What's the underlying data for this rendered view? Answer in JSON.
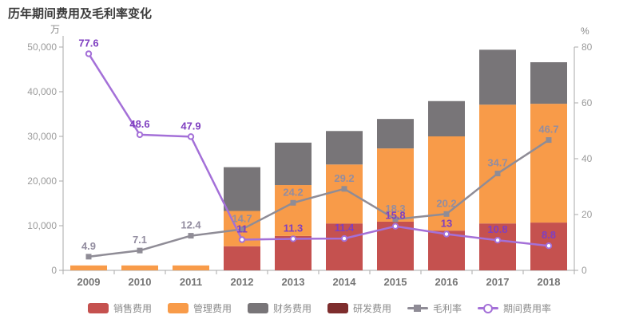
{
  "title": "历年期间费用及毛利率变化",
  "legend": [
    {
      "key": "sales-expense",
      "label": "销售费用",
      "type": "bar",
      "color": "#c5514f"
    },
    {
      "key": "admin-expense",
      "label": "管理费用",
      "type": "bar",
      "color": "#f89b49"
    },
    {
      "key": "finance-expense",
      "label": "财务费用",
      "type": "bar",
      "color": "#787578"
    },
    {
      "key": "rd-expense",
      "label": "研发费用",
      "type": "bar",
      "color": "#7e2d2d"
    },
    {
      "key": "gross-margin",
      "label": "毛利率",
      "type": "line-square",
      "color": "#8f8c96"
    },
    {
      "key": "period-expense-ratio",
      "label": "期间费用率",
      "type": "line-circle",
      "color": "#a470d8"
    }
  ],
  "chart_data": {
    "type": "bar+line",
    "categories": [
      "2009",
      "2010",
      "2011",
      "2012",
      "2013",
      "2014",
      "2015",
      "2016",
      "2017",
      "2018"
    ],
    "left_axis": {
      "unit": "万",
      "min": 0,
      "max": 50000,
      "ticks": [
        "0",
        "10,000",
        "20,000",
        "30,000",
        "40,000",
        "50,000"
      ]
    },
    "right_axis": {
      "unit": "%",
      "min": 0,
      "max": 80,
      "ticks": [
        "0",
        "20",
        "40",
        "60",
        "80"
      ]
    },
    "bar_series": [
      {
        "name": "销售费用",
        "key": "sales-expense",
        "color": "#c5514f",
        "values": [
          0,
          0,
          0,
          5400,
          7700,
          10500,
          10900,
          8900,
          10500,
          10700
        ]
      },
      {
        "name": "管理费用",
        "key": "admin-expense",
        "color": "#f89b49",
        "values": [
          1100,
          1100,
          1100,
          7900,
          11400,
          13200,
          16400,
          21100,
          26600,
          26600
        ]
      },
      {
        "name": "财务费用",
        "key": "finance-expense",
        "color": "#787578",
        "values": [
          0,
          0,
          0,
          9800,
          9500,
          7500,
          6600,
          7900,
          12300,
          9300
        ]
      },
      {
        "name": "研发费用",
        "key": "rd-expense",
        "color": "#7e2d2d",
        "values": [
          0,
          0,
          0,
          0,
          0,
          0,
          0,
          0,
          0,
          0
        ]
      }
    ],
    "line_series": [
      {
        "name": "毛利率",
        "key": "gross-margin",
        "axis": "right",
        "marker": "square",
        "color": "#8f8c96",
        "label_color": "#938da0",
        "values": [
          4.9,
          7.1,
          12.4,
          14.7,
          24.2,
          29.2,
          18.3,
          20.2,
          34.7,
          46.7
        ],
        "labels": [
          "4.9",
          "7.1",
          "12.4",
          "14.7",
          "24.2",
          "29.2",
          "18.3",
          "20.2",
          "34.7",
          "46.7"
        ]
      },
      {
        "name": "期间费用率",
        "key": "period-expense-ratio",
        "axis": "right",
        "marker": "circle",
        "color": "#a470d8",
        "label_color": "#7f3fc0",
        "values": [
          77.6,
          48.6,
          47.9,
          11,
          11.3,
          11.4,
          15.8,
          13,
          10.8,
          8.8
        ],
        "labels": [
          "77.6",
          "48.6",
          "47.9",
          "11",
          "11.3",
          "11.4",
          "15.8",
          "13",
          "10.8",
          "8.8"
        ]
      }
    ],
    "grid": false,
    "legend_position": "bottom"
  }
}
